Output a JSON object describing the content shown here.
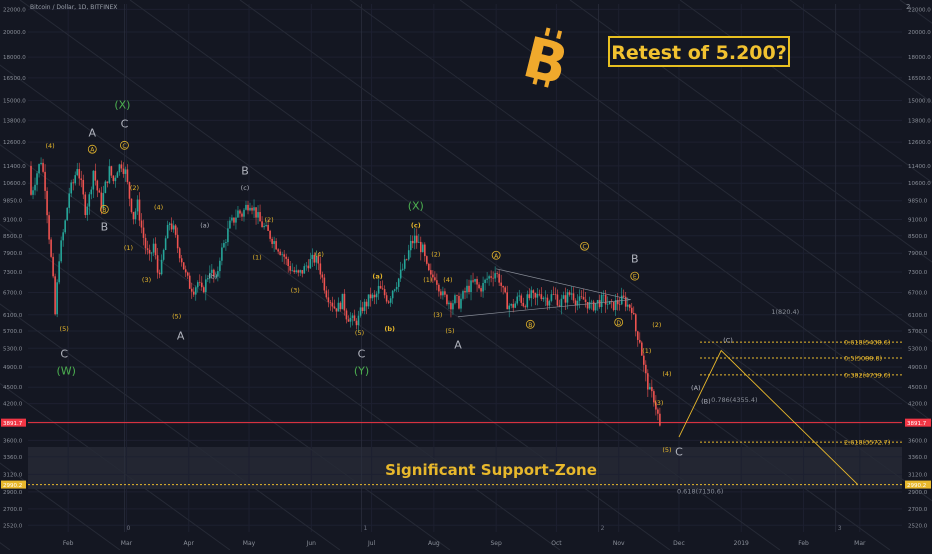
{
  "header": {
    "title": "Bitcoin / Dollar, 1D, BITFINEX"
  },
  "callout": {
    "text": "Retest of 5.200?"
  },
  "zone_label": "Significant Support-Zone",
  "chart_data": {
    "type": "candlestick",
    "title": "Bitcoin / Dollar, 1D, BITFINEX",
    "x_ticks": [
      {
        "label": "Feb",
        "x": 30
      },
      {
        "label": "Mar",
        "x": 59
      },
      {
        "label": "Apr",
        "x": 90
      },
      {
        "label": "May",
        "x": 120
      },
      {
        "label": "Jun",
        "x": 151
      },
      {
        "label": "Jul",
        "x": 181
      },
      {
        "label": "Aug",
        "x": 212
      },
      {
        "label": "Sep",
        "x": 243
      },
      {
        "label": "Oct",
        "x": 273
      },
      {
        "label": "Nov",
        "x": 304
      },
      {
        "label": "Dec",
        "x": 334
      },
      {
        "label": "2019",
        "x": 365
      },
      {
        "label": "Feb",
        "x": 396
      },
      {
        "label": "Mar",
        "x": 424
      }
    ],
    "x_range": [
      10,
      445
    ],
    "y_scale": "log",
    "y_ticks": [
      2520,
      2700,
      2900,
      3120,
      3360,
      3600,
      3900,
      4200,
      4500,
      4900,
      5300,
      5700,
      6100,
      6700,
      7300,
      7900,
      8500,
      9100,
      9850,
      10600,
      11400,
      12600,
      13800,
      15000,
      16500,
      18000,
      20000,
      22000
    ],
    "y_range": [
      2450,
      22500
    ],
    "price_points": [
      [
        11,
        11400
      ],
      [
        12,
        10100
      ],
      [
        15,
        11100
      ],
      [
        17,
        11700
      ],
      [
        19,
        10500
      ],
      [
        21,
        8500
      ],
      [
        23,
        7000
      ],
      [
        24,
        6100
      ],
      [
        26,
        7800
      ],
      [
        29,
        9000
      ],
      [
        31,
        10200
      ],
      [
        33,
        10600
      ],
      [
        35,
        11400
      ],
      [
        37,
        10500
      ],
      [
        39,
        9500
      ],
      [
        41,
        10000
      ],
      [
        43,
        11200
      ],
      [
        45,
        10300
      ],
      [
        47,
        9700
      ],
      [
        49,
        10500
      ],
      [
        51,
        11200
      ],
      [
        53,
        10700
      ],
      [
        55,
        11300
      ],
      [
        57,
        11500
      ],
      [
        59,
        11100
      ],
      [
        61,
        10000
      ],
      [
        63,
        9200
      ],
      [
        65,
        9700
      ],
      [
        67,
        8800
      ],
      [
        69,
        8100
      ],
      [
        71,
        7700
      ],
      [
        73,
        8200
      ],
      [
        75,
        7300
      ],
      [
        77,
        7500
      ],
      [
        79,
        8400
      ],
      [
        81,
        9000
      ],
      [
        83,
        8700
      ],
      [
        85,
        8100
      ],
      [
        87,
        7700
      ],
      [
        89,
        7200
      ],
      [
        91,
        6900
      ],
      [
        93,
        6800
      ],
      [
        95,
        7000
      ],
      [
        97,
        6700
      ],
      [
        99,
        7000
      ],
      [
        101,
        7400
      ],
      [
        104,
        7000
      ],
      [
        106,
        7800
      ],
      [
        108,
        8200
      ],
      [
        111,
        8900
      ],
      [
        113,
        9100
      ],
      [
        115,
        9400
      ],
      [
        117,
        9300
      ],
      [
        119,
        9600
      ],
      [
        121,
        9800
      ],
      [
        123,
        9500
      ],
      [
        126,
        9000
      ],
      [
        128,
        8800
      ],
      [
        131,
        8500
      ],
      [
        133,
        8300
      ],
      [
        135,
        8100
      ],
      [
        138,
        7800
      ],
      [
        140,
        7500
      ],
      [
        143,
        7300
      ],
      [
        145,
        7200
      ],
      [
        148,
        7400
      ],
      [
        150,
        7600
      ],
      [
        153,
        7700
      ],
      [
        155,
        7600
      ],
      [
        157,
        7100
      ],
      [
        159,
        6700
      ],
      [
        161,
        6500
      ],
      [
        163,
        6300
      ],
      [
        165,
        6300
      ],
      [
        167,
        6500
      ],
      [
        169,
        6100
      ],
      [
        171,
        6000
      ],
      [
        173,
        5900
      ],
      [
        175,
        6000
      ],
      [
        177,
        6300
      ],
      [
        179,
        6400
      ],
      [
        181,
        6600
      ],
      [
        183,
        6500
      ],
      [
        185,
        6800
      ],
      [
        187,
        6700
      ],
      [
        190,
        6500
      ],
      [
        192,
        6800
      ],
      [
        195,
        7100
      ],
      [
        197,
        7400
      ],
      [
        199,
        7700
      ],
      [
        201,
        8200
      ],
      [
        203,
        8400
      ],
      [
        205,
        8200
      ],
      [
        207,
        8000
      ],
      [
        209,
        7400
      ],
      [
        211,
        7100
      ],
      [
        213,
        7200
      ],
      [
        215,
        6900
      ],
      [
        217,
        6600
      ],
      [
        219,
        6500
      ],
      [
        221,
        6400
      ],
      [
        223,
        6500
      ],
      [
        225,
        6400
      ],
      [
        227,
        6600
      ],
      [
        229,
        6800
      ],
      [
        231,
        6900
      ],
      [
        233,
        7000
      ],
      [
        235,
        6800
      ],
      [
        237,
        6900
      ],
      [
        239,
        7100
      ],
      [
        241,
        7200
      ],
      [
        243,
        7300
      ],
      [
        245,
        7100
      ],
      [
        247,
        6700
      ],
      [
        249,
        6400
      ],
      [
        251,
        6300
      ],
      [
        253,
        6400
      ],
      [
        255,
        6600
      ],
      [
        257,
        6400
      ],
      [
        259,
        6500
      ],
      [
        261,
        6600
      ],
      [
        263,
        6500
      ],
      [
        265,
        6700
      ],
      [
        267,
        6600
      ],
      [
        269,
        6500
      ],
      [
        271,
        6600
      ],
      [
        273,
        6600
      ],
      [
        275,
        6400
      ],
      [
        277,
        6500
      ],
      [
        279,
        6600
      ],
      [
        281,
        6700
      ],
      [
        283,
        6500
      ],
      [
        285,
        6450
      ],
      [
        287,
        6500
      ],
      [
        289,
        6400
      ],
      [
        291,
        6300
      ],
      [
        293,
        6400
      ],
      [
        295,
        6450
      ],
      [
        297,
        6500
      ],
      [
        299,
        6400
      ],
      [
        301,
        6300
      ],
      [
        303,
        6400
      ],
      [
        305,
        6450
      ],
      [
        307,
        6500
      ],
      [
        309,
        6350
      ],
      [
        311,
        6300
      ],
      [
        313,
        5700
      ],
      [
        315,
        5500
      ],
      [
        317,
        4900
      ],
      [
        318,
        4700
      ],
      [
        320,
        4400
      ],
      [
        322,
        4300
      ],
      [
        324,
        4000
      ],
      [
        325,
        3800
      ]
    ],
    "horizontal_levels": [
      {
        "label": "0.618(5438.6)",
        "price": 5438.6,
        "color": "#e8b82c"
      },
      {
        "label": "0.5(5088.8)",
        "price": 5088.8,
        "color": "#e8b82c"
      },
      {
        "label": "0.382(4739.0)",
        "price": 4739.0,
        "color": "#e8b82c"
      },
      {
        "label": "2.618(3572.7)",
        "price": 3572.7,
        "color": "#e8b82c"
      },
      {
        "label": "",
        "price": 3878,
        "color": "#f23645"
      },
      {
        "label": "",
        "price": 2990,
        "color": "#e8b82c"
      }
    ],
    "fib_text": [
      {
        "label": "1(820.4)",
        "x": 380,
        "price": 6120
      },
      {
        "label": "0.786(4355.4)",
        "x": 350,
        "price": 4230
      },
      {
        "label": "0.618(7130.6)",
        "x": 333,
        "price": 2880
      }
    ],
    "projection": [
      [
        334,
        3650
      ],
      [
        355,
        5250
      ],
      [
        423,
        2990
      ]
    ],
    "projection_labels": [
      {
        "label": "(A)",
        "x": 340,
        "price": 4450
      },
      {
        "label": "(B)",
        "x": 345,
        "price": 4200
      },
      {
        "label": "(C)",
        "x": 356,
        "price": 5430
      }
    ],
    "triangle": [
      [
        243,
        7400
      ],
      [
        310,
        6500
      ],
      [
        224,
        6050
      ]
    ],
    "wave_labels": [
      {
        "t": "(4)",
        "x": 21,
        "p": 12300,
        "c": "#e8b82c"
      },
      {
        "t": "A",
        "x": 42,
        "p": 12900,
        "c": "#b0b3bd"
      },
      {
        "t": "A",
        "x": 42,
        "p": 12100,
        "c": "#e8b82c",
        "circle": true
      },
      {
        "t": "B",
        "x": 48,
        "p": 9400,
        "c": "#e8b82c",
        "circle": true
      },
      {
        "t": "B",
        "x": 48,
        "p": 8700,
        "c": "#b0b3bd"
      },
      {
        "t": "(X)",
        "x": 57,
        "p": 14500,
        "c": "#4caf50"
      },
      {
        "t": "C",
        "x": 58,
        "p": 13400,
        "c": "#b0b3bd"
      },
      {
        "t": "C",
        "x": 58,
        "p": 12300,
        "c": "#e8b82c",
        "circle": true
      },
      {
        "t": "(2)",
        "x": 63,
        "p": 10300,
        "c": "#e8b82c"
      },
      {
        "t": "(1)",
        "x": 60,
        "p": 8000,
        "c": "#e8b82c"
      },
      {
        "t": "(4)",
        "x": 75,
        "p": 9500,
        "c": "#e8b82c"
      },
      {
        "t": "(3)",
        "x": 69,
        "p": 7000,
        "c": "#e8b82c"
      },
      {
        "t": "(5)",
        "x": 84,
        "p": 6000,
        "c": "#e8b82c"
      },
      {
        "t": "A",
        "x": 86,
        "p": 5500,
        "c": "#b0b3bd"
      },
      {
        "t": "(5)",
        "x": 28,
        "p": 5700,
        "c": "#e8b82c"
      },
      {
        "t": "C",
        "x": 28,
        "p": 5100,
        "c": "#b0b3bd"
      },
      {
        "t": "(W)",
        "x": 29,
        "p": 4750,
        "c": "#4caf50"
      },
      {
        "t": "(a)",
        "x": 98,
        "p": 8800,
        "c": "#b0b3bd"
      },
      {
        "t": "(b)",
        "x": 102,
        "p": 7100,
        "c": "#b0b3bd"
      },
      {
        "t": "B",
        "x": 118,
        "p": 11000,
        "c": "#b0b3bd"
      },
      {
        "t": "(c)",
        "x": 118,
        "p": 10300,
        "c": "#b0b3bd"
      },
      {
        "t": "(2)",
        "x": 130,
        "p": 9000,
        "c": "#e8b82c"
      },
      {
        "t": "(1)",
        "x": 124,
        "p": 7700,
        "c": "#e8b82c"
      },
      {
        "t": "(4)",
        "x": 155,
        "p": 7800,
        "c": "#e8b82c"
      },
      {
        "t": "(3)",
        "x": 143,
        "p": 6700,
        "c": "#e8b82c"
      },
      {
        "t": "(5)",
        "x": 175,
        "p": 5600,
        "c": "#e8b82c"
      },
      {
        "t": "C",
        "x": 176,
        "p": 5100,
        "c": "#b0b3bd"
      },
      {
        "t": "(Y)",
        "x": 176,
        "p": 4750,
        "c": "#4caf50"
      },
      {
        "t": "(a)",
        "x": 184,
        "p": 7100,
        "c": "#e8b82c"
      },
      {
        "t": "(b)",
        "x": 190,
        "p": 5700,
        "c": "#e8b82c"
      },
      {
        "t": "(X)",
        "x": 203,
        "p": 9500,
        "c": "#4caf50"
      },
      {
        "t": "(c)",
        "x": 203,
        "p": 8800,
        "c": "#e8b82c"
      },
      {
        "t": "(2)",
        "x": 213,
        "p": 7800,
        "c": "#e8b82c"
      },
      {
        "t": "(1)",
        "x": 209,
        "p": 7000,
        "c": "#e8b82c"
      },
      {
        "t": "(4)",
        "x": 219,
        "p": 7000,
        "c": "#e8b82c"
      },
      {
        "t": "(3)",
        "x": 214,
        "p": 6050,
        "c": "#e8b82c"
      },
      {
        "t": "(5)",
        "x": 220,
        "p": 5650,
        "c": "#e8b82c"
      },
      {
        "t": "A",
        "x": 224,
        "p": 5300,
        "c": "#b0b3bd"
      },
      {
        "t": "A",
        "x": 243,
        "p": 7750,
        "c": "#e8b82c",
        "circle": true
      },
      {
        "t": "B",
        "x": 260,
        "p": 5800,
        "c": "#e8b82c",
        "circle": true
      },
      {
        "t": "C",
        "x": 287,
        "p": 8050,
        "c": "#e8b82c",
        "circle": true
      },
      {
        "t": "D",
        "x": 304,
        "p": 5850,
        "c": "#e8b82c",
        "circle": true
      },
      {
        "t": "B",
        "x": 312,
        "p": 7600,
        "c": "#b0b3bd"
      },
      {
        "t": "E",
        "x": 312,
        "p": 7100,
        "c": "#e8b82c",
        "circle": true
      },
      {
        "t": "(2)",
        "x": 323,
        "p": 5800,
        "c": "#e8b82c"
      },
      {
        "t": "(1)",
        "x": 318,
        "p": 5200,
        "c": "#e8b82c"
      },
      {
        "t": "(4)",
        "x": 328,
        "p": 4720,
        "c": "#e8b82c"
      },
      {
        "t": "(3)",
        "x": 324,
        "p": 4180,
        "c": "#e8b82c"
      },
      {
        "t": "(5)",
        "x": 328,
        "p": 3430,
        "c": "#e8b82c"
      },
      {
        "t": "C",
        "x": 334,
        "p": 3380,
        "c": "#b0b3bd"
      }
    ],
    "axis_price_labels": [
      {
        "t": "3891.7",
        "p": 3878,
        "bg": "#f23645"
      },
      {
        "t": "2990.2",
        "p": 2990,
        "bg": "#e8b82c"
      }
    ],
    "period_markers": [
      {
        "t": "0",
        "x": 58
      },
      {
        "t": "1",
        "x": 176
      },
      {
        "t": "2",
        "x": 294
      },
      {
        "t": "3",
        "x": 412
      }
    ],
    "top_right_mark": "2"
  }
}
